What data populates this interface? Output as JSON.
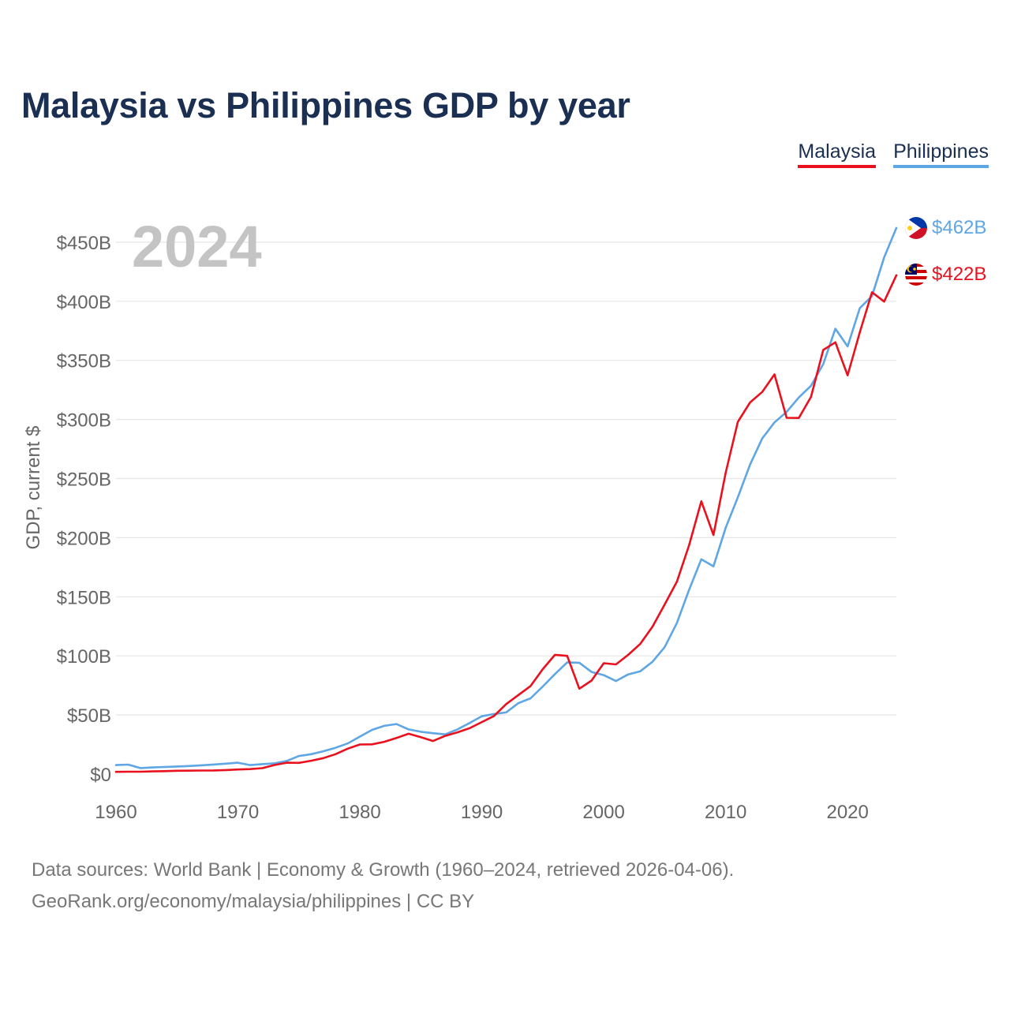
{
  "title": "Malaysia vs Philippines GDP by year",
  "legend": {
    "malaysia": "Malaysia",
    "philippines": "Philippines"
  },
  "source": {
    "line1": "Data sources: World Bank | Economy & Growth (1960–2024, retrieved 2026-04-06).",
    "line2": "GeoRank.org/economy/malaysia/philippines | CC BY"
  },
  "colors": {
    "malaysia": "#e8111d",
    "philippines": "#5ea6e4",
    "title": "#1b2f52",
    "grid": "#e6e6e6",
    "axis_text": "#666666",
    "year_watermark": "#c4c4c4"
  },
  "chart_data": {
    "type": "line",
    "title": "Malaysia vs Philippines GDP by year",
    "xlabel": "",
    "ylabel": "GDP, current $",
    "year_label": "2024",
    "xlim": [
      1960,
      2024
    ],
    "ylim": [
      0,
      480
    ],
    "x_ticks": [
      1960,
      1970,
      1980,
      1990,
      2000,
      2010,
      2020
    ],
    "y_ticks": [
      0,
      50,
      100,
      150,
      200,
      250,
      300,
      350,
      400,
      450
    ],
    "y_tick_labels": [
      "$0",
      "$50B",
      "$100B",
      "$150B",
      "$200B",
      "$250B",
      "$300B",
      "$350B",
      "$400B",
      "$450B"
    ],
    "grid": true,
    "x": [
      1960,
      1961,
      1962,
      1963,
      1964,
      1965,
      1966,
      1967,
      1968,
      1969,
      1970,
      1971,
      1972,
      1973,
      1974,
      1975,
      1976,
      1977,
      1978,
      1979,
      1980,
      1981,
      1982,
      1983,
      1984,
      1985,
      1986,
      1987,
      1988,
      1989,
      1990,
      1991,
      1992,
      1993,
      1994,
      1995,
      1996,
      1997,
      1998,
      1999,
      2000,
      2001,
      2002,
      2003,
      2004,
      2005,
      2006,
      2007,
      2008,
      2009,
      2010,
      2011,
      2012,
      2013,
      2014,
      2015,
      2016,
      2017,
      2018,
      2019,
      2020,
      2021,
      2022,
      2023,
      2024
    ],
    "series": [
      {
        "name": "Malaysia",
        "color": "#e8111d",
        "end_label": "$422B",
        "values": [
          1.9,
          2.0,
          2.0,
          2.3,
          2.5,
          2.8,
          2.9,
          3.0,
          3.1,
          3.4,
          3.9,
          4.2,
          5.0,
          7.7,
          9.6,
          9.5,
          11.3,
          13.5,
          16.8,
          21.5,
          25.0,
          25.2,
          27.3,
          30.6,
          34.1,
          31.2,
          28.0,
          32.3,
          35.3,
          38.8,
          44.0,
          49.1,
          59.2,
          66.9,
          74.5,
          88.8,
          100.9,
          100.0,
          72.2,
          79.1,
          93.8,
          92.8,
          100.8,
          110.2,
          124.7,
          143.5,
          162.7,
          193.6,
          230.8,
          202.3,
          255.0,
          298.0,
          314.4,
          323.3,
          338.1,
          301.4,
          301.3,
          319.1,
          358.8,
          365.3,
          337.3,
          373.6,
          407.6,
          399.7,
          422.0
        ]
      },
      {
        "name": "Philippines",
        "color": "#5ea6e4",
        "end_label": "$462B",
        "values": [
          7.6,
          8.0,
          5.1,
          5.6,
          6.0,
          6.4,
          6.8,
          7.4,
          8.1,
          8.8,
          9.6,
          7.6,
          8.4,
          9.1,
          11.1,
          15.3,
          16.8,
          19.3,
          22.2,
          25.9,
          31.7,
          37.4,
          40.8,
          42.3,
          37.8,
          35.8,
          34.6,
          33.6,
          37.8,
          43.2,
          48.9,
          50.8,
          52.2,
          60.0,
          64.1,
          74.1,
          84.6,
          94.5,
          94.2,
          86.4,
          83.7,
          78.7,
          84.3,
          87.0,
          95.0,
          107.4,
          127.7,
          155.9,
          181.7,
          175.8,
          208.4,
          234.2,
          261.9,
          283.9,
          297.5,
          306.4,
          318.6,
          328.5,
          346.8,
          376.8,
          361.8,
          394.1,
          404.4,
          437.1,
          462.0
        ]
      }
    ]
  }
}
